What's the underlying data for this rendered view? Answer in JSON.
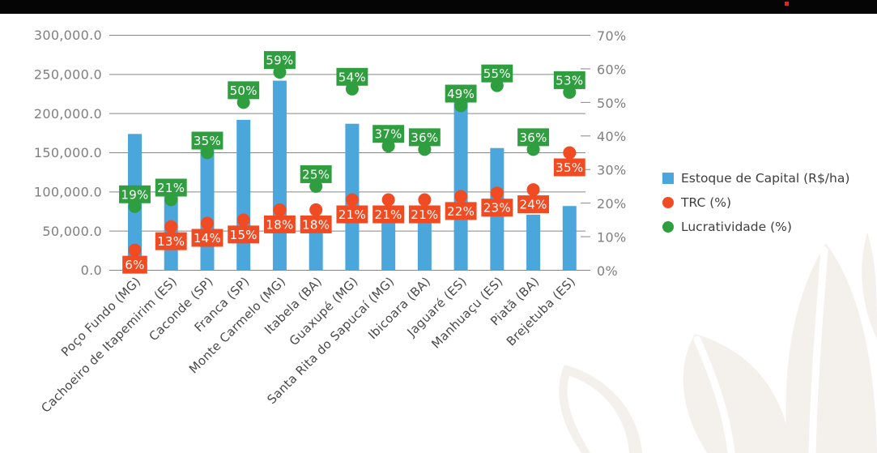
{
  "top_bar": {
    "color": "#050505",
    "accent_dot_color": "#e8221c"
  },
  "legend": {
    "position": "right",
    "entries": [
      {
        "label": "Estoque de Capital (R$/ha)",
        "marker": "square",
        "color": "#4ba6dc"
      },
      {
        "label": "TRC (%)",
        "marker": "circle",
        "color": "#f04b23"
      },
      {
        "label": "Lucratividade (%)",
        "marker": "circle",
        "color": "#2f9e3f"
      }
    ]
  },
  "chart_data": {
    "type": "bar",
    "subtype": "combo-bar-scatter-dual-axis",
    "title": "",
    "categories": [
      "Poço Fundo (MG)",
      "Cachoeiro de Itapemirim (ES)",
      "Caconde (SP)",
      "Franca (SP)",
      "Monte Carmelo (MG)",
      "Itabela (BA)",
      "Guaxupé (MG)",
      "Santa Rita do Sapucaí (MG)",
      "Ibicoara (BA)",
      "Jaguaré (ES)",
      "Manhuaçu (ES)",
      "Piatã (BA)",
      "Brejetuba (ES)"
    ],
    "series": [
      {
        "name": "Estoque de Capital (R$/ha)",
        "type": "bar",
        "axis": "left",
        "color": "#4ba6dc",
        "values": [
          174000,
          112000,
          155000,
          192000,
          242000,
          56000,
          187000,
          78000,
          77000,
          215000,
          156000,
          71000,
          82000
        ]
      },
      {
        "name": "TRC (%)",
        "type": "scatter",
        "axis": "right",
        "color": "#f04b23",
        "label_position": "below",
        "values": [
          6,
          13,
          14,
          15,
          18,
          18,
          21,
          21,
          21,
          22,
          23,
          24,
          35
        ]
      },
      {
        "name": "Lucratividade (%)",
        "type": "scatter",
        "axis": "right",
        "color": "#2f9e3f",
        "label_position": "above",
        "values": [
          19,
          21,
          35,
          50,
          59,
          25,
          54,
          37,
          36,
          49,
          55,
          36,
          53
        ]
      }
    ],
    "left_axis": {
      "min": 0,
      "max": 300000,
      "step": 50000,
      "tick_labels": [
        "0.0",
        "50,000.0",
        "100,000.0",
        "150,000.0",
        "200,000.0",
        "250,000.0",
        "300,000.0"
      ]
    },
    "right_axis": {
      "min": 0,
      "max": 70,
      "step": 10,
      "tick_labels": [
        "0%",
        "10%",
        "20%",
        "30%",
        "40%",
        "50%",
        "60%",
        "70%"
      ]
    },
    "grid": true,
    "legend_position": "right",
    "colors": {
      "grid": "#868686",
      "axis_text": "#7f7f7f",
      "category_text": "#4a4a4a",
      "data_label_text": "#ffffff"
    }
  },
  "watermark": {
    "description": "leaf-watermark",
    "color": "#f4f1ed"
  }
}
